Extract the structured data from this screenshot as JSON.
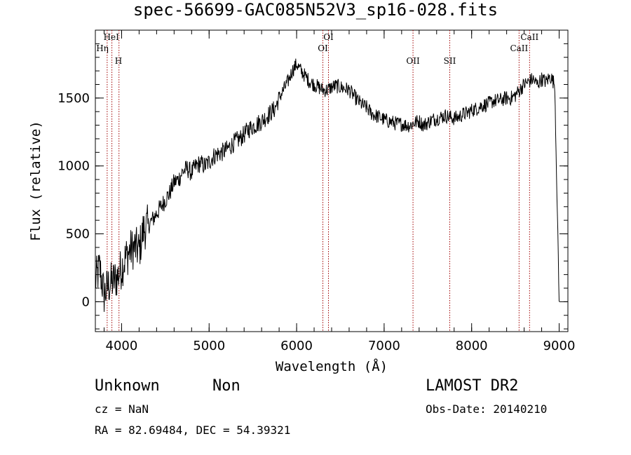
{
  "chart_data": {
    "type": "line",
    "title": "spec-56699-GAC085N52V3_sp16-028.fits",
    "xlabel": "Wavelength (Å)",
    "ylabel": "Flux (relative)",
    "xlim": [
      3700,
      9100
    ],
    "ylim": [
      -220,
      2000
    ],
    "xticks": [
      4000,
      5000,
      6000,
      7000,
      8000,
      9000
    ],
    "yticks": [
      0,
      500,
      1000,
      1500
    ],
    "xtick_labels": [
      "4000",
      "5000",
      "6000",
      "7000",
      "8000",
      "9000"
    ],
    "ytick_labels": [
      "0",
      "500",
      "1000",
      "1500"
    ],
    "series": [
      {
        "x": [
          3700,
          3750,
          3800,
          3850,
          3900,
          3950,
          4000,
          4050,
          4100,
          4150,
          4200,
          4250,
          4300,
          4350,
          4400,
          4450,
          4500,
          4550,
          4600,
          4650,
          4700,
          4750,
          4800,
          4850,
          4900,
          4950,
          5000,
          5050,
          5100,
          5150,
          5200,
          5250,
          5300,
          5350,
          5400,
          5450,
          5500,
          5550,
          5600,
          5650,
          5700,
          5750,
          5800,
          5850,
          5900,
          5950,
          6000,
          6050,
          6100,
          6150,
          6200,
          6250,
          6300,
          6350,
          6400,
          6450,
          6500,
          6550,
          6600,
          6650,
          6700,
          6750,
          6800,
          6850,
          6900,
          6950,
          7000,
          7050,
          7100,
          7150,
          7200,
          7250,
          7300,
          7350,
          7400,
          7450,
          7500,
          7550,
          7600,
          7650,
          7700,
          7750,
          7800,
          7850,
          7900,
          7950,
          8000,
          8050,
          8100,
          8150,
          8200,
          8250,
          8300,
          8350,
          8400,
          8450,
          8500,
          8550,
          8600,
          8650,
          8700,
          8750,
          8800,
          8850,
          8900,
          8950,
          9000
        ],
        "y": [
          150,
          250,
          50,
          120,
          150,
          180,
          250,
          330,
          380,
          400,
          380,
          530,
          560,
          600,
          650,
          700,
          750,
          800,
          880,
          900,
          960,
          980,
          950,
          1000,
          1020,
          1000,
          1030,
          1070,
          1090,
          1100,
          1120,
          1150,
          1180,
          1200,
          1230,
          1270,
          1290,
          1310,
          1330,
          1360,
          1390,
          1420,
          1500,
          1560,
          1620,
          1700,
          1750,
          1700,
          1660,
          1620,
          1600,
          1580,
          1560,
          1560,
          1580,
          1590,
          1580,
          1570,
          1560,
          1520,
          1480,
          1450,
          1430,
          1390,
          1370,
          1360,
          1340,
          1330,
          1320,
          1310,
          1310,
          1300,
          1300,
          1320,
          1330,
          1300,
          1320,
          1340,
          1350,
          1360,
          1370,
          1360,
          1350,
          1360,
          1380,
          1390,
          1410,
          1420,
          1440,
          1450,
          1460,
          1480,
          1480,
          1490,
          1500,
          1500,
          1520,
          1560,
          1600,
          1620,
          1640,
          1600,
          1640,
          1620,
          1660,
          1600,
          0
        ]
      }
    ],
    "lines": [
      {
        "label": "HeI",
        "x": 3889
      },
      {
        "label": "Hη",
        "x": 3835
      },
      {
        "label": "H",
        "x": 3970
      },
      {
        "label": "OI",
        "x": 6364
      },
      {
        "label": "OI",
        "x": 6300
      },
      {
        "label": "OII",
        "x": 7330
      },
      {
        "label": "SII",
        "x": 7750
      },
      {
        "label": "CaII",
        "x": 8662
      },
      {
        "label": "CaII",
        "x": 8542
      }
    ]
  },
  "info": {
    "object_type": "Unknown",
    "object_subtype": "Non",
    "survey": "LAMOST DR2",
    "cz": "cz = NaN",
    "obs_date": "Obs-Date: 20140210",
    "coords": "RA =  82.69484, DEC =  54.39321"
  }
}
